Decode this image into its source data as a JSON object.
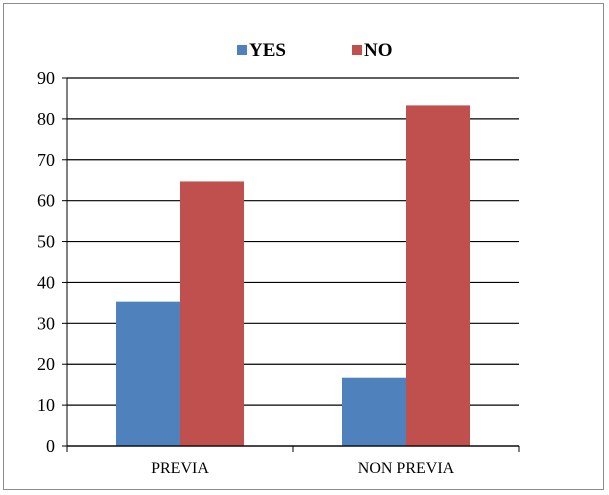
{
  "chart_data": {
    "type": "bar",
    "categories": [
      "PREVIA",
      "NON PREVIA"
    ],
    "series": [
      {
        "name": "YES",
        "values": [
          35.3,
          16.7
        ],
        "color": "#4f81bd"
      },
      {
        "name": "NO",
        "values": [
          64.7,
          83.3
        ],
        "color": "#c0504d"
      }
    ],
    "ylim": [
      0,
      90
    ],
    "yticks": [
      0,
      10,
      20,
      30,
      40,
      50,
      60,
      70,
      80,
      90
    ],
    "grid": true,
    "legend": "top"
  }
}
